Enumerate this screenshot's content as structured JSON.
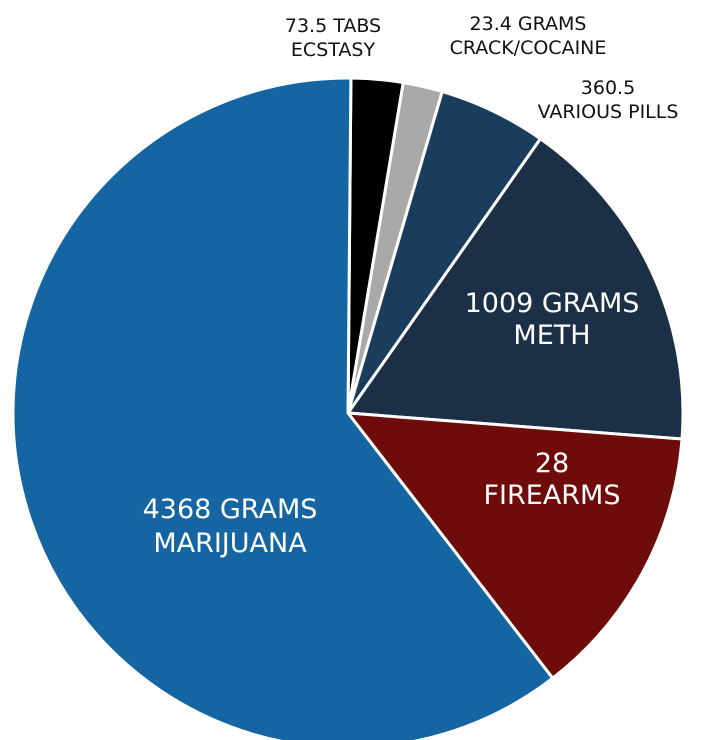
{
  "chart_data": {
    "type": "pie",
    "title": "",
    "slices": [
      {
        "label_lines": [
          "73.5 TABS",
          "ECSTASY"
        ],
        "value": 2.5,
        "color": "#000000",
        "label_position": "outside"
      },
      {
        "label_lines": [
          "23.4 GRAMS",
          "CRACK/COCAINE"
        ],
        "value": 1.9,
        "color": "#a9a9a9",
        "label_position": "outside"
      },
      {
        "label_lines": [
          "360.5",
          "VARIOUS PILLS"
        ],
        "value": 5.2,
        "color": "#1a3d5e",
        "label_position": "outside"
      },
      {
        "label_lines": [
          "1009 GRAMS",
          "METH"
        ],
        "value": 16.5,
        "color": "#1b3046",
        "label_position": "inside"
      },
      {
        "label_lines": [
          "28",
          "FIREARMS"
        ],
        "value": 13.3,
        "color": "#6e0b0b",
        "label_position": "inside"
      },
      {
        "label_lines": [
          "4368 GRAMS",
          "MARIJUANA"
        ],
        "value": 60.6,
        "color": "#1565a3",
        "label_position": "inside"
      }
    ]
  }
}
